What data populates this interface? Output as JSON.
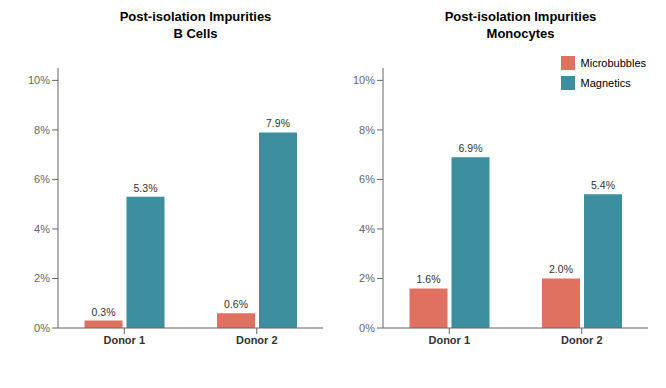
{
  "chart_data": [
    {
      "type": "bar",
      "title": "Post-isolation Impurities\nB Cells",
      "categories": [
        "Donor 1",
        "Donor 2"
      ],
      "series": [
        {
          "color": "#E07060",
          "values": [
            0.3,
            0.6
          ],
          "value_labels": [
            "0.3%",
            "0.6%"
          ]
        },
        {
          "color": "#3D8FA0",
          "values": [
            5.3,
            7.9
          ],
          "value_labels": [
            "5.3%",
            "7.9%"
          ]
        }
      ],
      "ylim": [
        0,
        10.5
      ],
      "yticks": [
        {
          "value": 0,
          "label": "0%"
        },
        {
          "value": 2,
          "label": "2%"
        },
        {
          "value": 4,
          "label": "4%"
        },
        {
          "value": 6,
          "label": "6%"
        },
        {
          "value": 8,
          "label": "8%"
        },
        {
          "value": 10,
          "label": "10%"
        }
      ],
      "data_labels": true
    },
    {
      "type": "bar",
      "title": "Post-isolation Impurities\nMonocytes",
      "categories": [
        "Donor 1",
        "Donor 2"
      ],
      "series": [
        {
          "name": "Microbubbles",
          "color": "#E07060",
          "values": [
            1.6,
            2.0
          ],
          "value_labels": [
            "1.6%",
            "2.0%"
          ]
        },
        {
          "name": "Magnetics",
          "color": "#3D8FA0",
          "values": [
            6.9,
            5.4
          ],
          "value_labels": [
            "6.9%",
            "5.4%"
          ]
        }
      ],
      "ylim": [
        0,
        10.5
      ],
      "yticks": [
        {
          "value": 0,
          "label": "0%"
        },
        {
          "value": 2,
          "label": "2%"
        },
        {
          "value": 4,
          "label": "4%"
        },
        {
          "value": 6,
          "label": "6%"
        },
        {
          "value": 8,
          "label": "8%"
        },
        {
          "value": 10,
          "label": "10%"
        }
      ],
      "data_labels": true,
      "legend": "upper right"
    }
  ]
}
